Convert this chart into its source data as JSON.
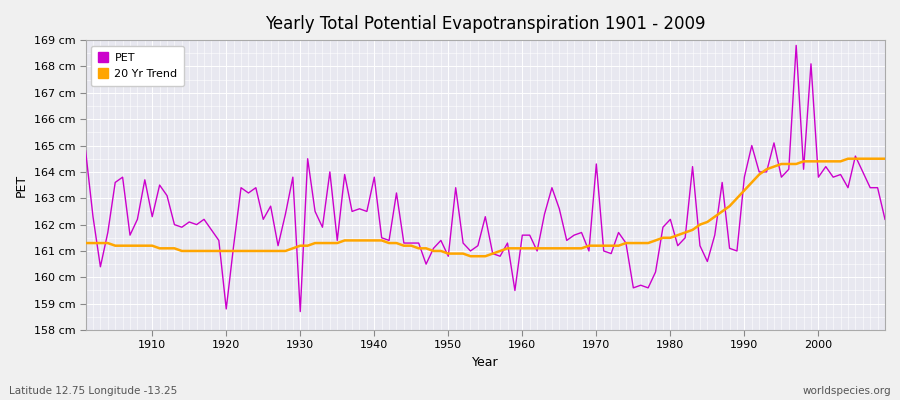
{
  "title": "Yearly Total Potential Evapotranspiration 1901 - 2009",
  "xlabel": "Year",
  "ylabel": "PET",
  "subtitle_left": "Latitude 12.75 Longitude -13.25",
  "subtitle_right": "worldspecies.org",
  "bg_color": "#f0f0f0",
  "plot_bg_color": "#e8e8f0",
  "pet_color": "#cc00cc",
  "trend_color": "#FFA500",
  "ylim": [
    158,
    169
  ],
  "ytick_labels": [
    "158 cm",
    "159 cm",
    "160 cm",
    "161 cm",
    "162 cm",
    "163 cm",
    "164 cm",
    "165 cm",
    "166 cm",
    "167 cm",
    "168 cm",
    "169 cm"
  ],
  "ytick_values": [
    158,
    159,
    160,
    161,
    162,
    163,
    164,
    165,
    166,
    167,
    168,
    169
  ],
  "years": [
    1901,
    1902,
    1903,
    1904,
    1905,
    1906,
    1907,
    1908,
    1909,
    1910,
    1911,
    1912,
    1913,
    1914,
    1915,
    1916,
    1917,
    1918,
    1919,
    1920,
    1921,
    1922,
    1923,
    1924,
    1925,
    1926,
    1927,
    1928,
    1929,
    1930,
    1931,
    1932,
    1933,
    1934,
    1935,
    1936,
    1937,
    1938,
    1939,
    1940,
    1941,
    1942,
    1943,
    1944,
    1945,
    1946,
    1947,
    1948,
    1949,
    1950,
    1951,
    1952,
    1953,
    1954,
    1955,
    1956,
    1957,
    1958,
    1959,
    1960,
    1961,
    1962,
    1963,
    1964,
    1965,
    1966,
    1967,
    1968,
    1969,
    1970,
    1971,
    1972,
    1973,
    1974,
    1975,
    1976,
    1977,
    1978,
    1979,
    1980,
    1981,
    1982,
    1983,
    1984,
    1985,
    1986,
    1987,
    1988,
    1989,
    1990,
    1991,
    1992,
    1993,
    1994,
    1995,
    1996,
    1997,
    1998,
    1999,
    2000,
    2001,
    2002,
    2003,
    2004,
    2005,
    2006,
    2007,
    2008,
    2009
  ],
  "pet_values": [
    164.8,
    162.3,
    160.4,
    161.7,
    163.6,
    163.8,
    161.6,
    162.2,
    163.7,
    162.3,
    163.5,
    163.1,
    162.0,
    161.9,
    162.1,
    162.0,
    162.2,
    161.8,
    161.4,
    158.8,
    161.2,
    163.4,
    163.2,
    163.4,
    162.2,
    162.7,
    161.2,
    162.4,
    163.8,
    158.7,
    164.5,
    162.5,
    161.9,
    164.0,
    161.4,
    163.9,
    162.5,
    162.6,
    162.5,
    163.8,
    161.5,
    161.4,
    163.2,
    161.3,
    161.3,
    161.3,
    160.5,
    161.1,
    161.4,
    160.8,
    163.4,
    161.3,
    161.0,
    161.2,
    162.3,
    160.9,
    160.8,
    161.3,
    159.5,
    161.6,
    161.6,
    161.0,
    162.4,
    163.4,
    162.6,
    161.4,
    161.6,
    161.7,
    161.0,
    164.3,
    161.0,
    160.9,
    161.7,
    161.3,
    159.6,
    159.7,
    159.6,
    160.2,
    161.9,
    162.2,
    161.2,
    161.5,
    164.2,
    161.2,
    160.6,
    161.6,
    163.6,
    161.1,
    161.0,
    163.8,
    165.0,
    164.0,
    164.0,
    165.1,
    163.8,
    164.1,
    168.8,
    164.1,
    168.1,
    163.8,
    164.2,
    163.8,
    163.9,
    163.4,
    164.6,
    164.0,
    163.4,
    163.4,
    162.2
  ],
  "trend_values": [
    161.3,
    161.3,
    161.3,
    161.3,
    161.2,
    161.2,
    161.2,
    161.2,
    161.2,
    161.2,
    161.1,
    161.1,
    161.1,
    161.0,
    161.0,
    161.0,
    161.0,
    161.0,
    161.0,
    161.0,
    161.0,
    161.0,
    161.0,
    161.0,
    161.0,
    161.0,
    161.0,
    161.0,
    161.1,
    161.2,
    161.2,
    161.3,
    161.3,
    161.3,
    161.3,
    161.4,
    161.4,
    161.4,
    161.4,
    161.4,
    161.4,
    161.3,
    161.3,
    161.2,
    161.2,
    161.1,
    161.1,
    161.0,
    161.0,
    160.9,
    160.9,
    160.9,
    160.8,
    160.8,
    160.8,
    160.9,
    161.0,
    161.1,
    161.1,
    161.1,
    161.1,
    161.1,
    161.1,
    161.1,
    161.1,
    161.1,
    161.1,
    161.1,
    161.2,
    161.2,
    161.2,
    161.2,
    161.2,
    161.3,
    161.3,
    161.3,
    161.3,
    161.4,
    161.5,
    161.5,
    161.6,
    161.7,
    161.8,
    162.0,
    162.1,
    162.3,
    162.5,
    162.7,
    163.0,
    163.3,
    163.6,
    163.9,
    164.1,
    164.2,
    164.3,
    164.3,
    164.3,
    164.4,
    164.4,
    164.4,
    164.4,
    164.4,
    164.4,
    164.5,
    164.5,
    164.5,
    164.5,
    164.5,
    164.5
  ]
}
